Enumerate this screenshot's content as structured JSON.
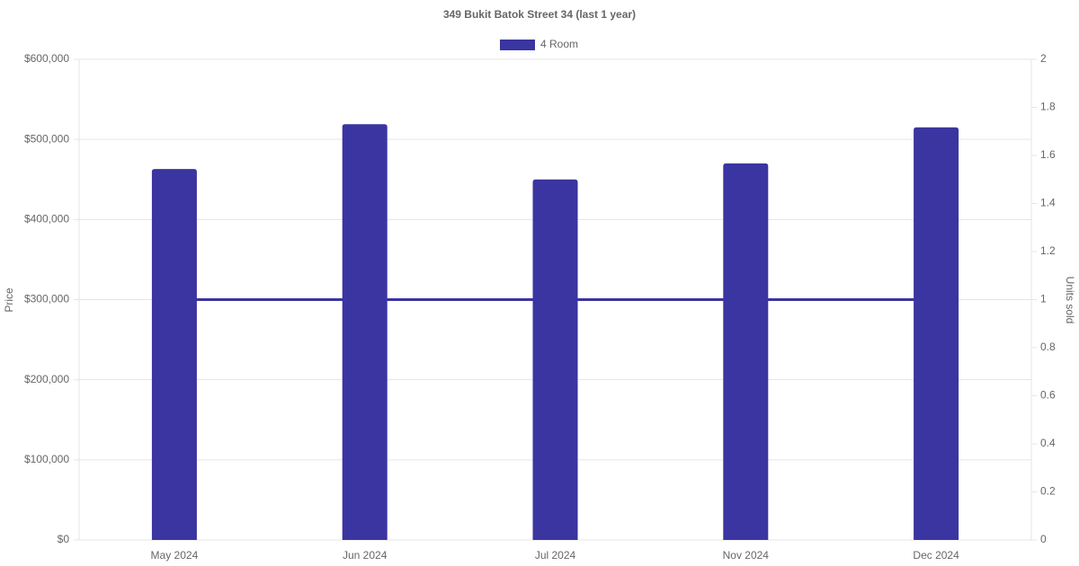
{
  "chart_data": {
    "type": "bar",
    "title": "349 Bukit Batok Street 34 (last 1 year)",
    "categories": [
      "May 2024",
      "Jun 2024",
      "Jul 2024",
      "Nov 2024",
      "Dec 2024"
    ],
    "series": [
      {
        "name": "4 Room",
        "color": "#3a35a0",
        "values": [
          463000,
          519000,
          450000,
          470000,
          515000
        ]
      },
      {
        "type": "line",
        "axis": "y2",
        "color": "#3a35a0",
        "values": [
          1,
          1,
          1,
          1,
          1
        ]
      }
    ],
    "ylabel": "Price",
    "y2label": "Units sold",
    "ylim": [
      0,
      600000
    ],
    "yticks": [
      {
        "value": 0,
        "label": "$0"
      },
      {
        "value": 100000,
        "label": "$100,000"
      },
      {
        "value": 200000,
        "label": "$200,000"
      },
      {
        "value": 300000,
        "label": "$300,000"
      },
      {
        "value": 400000,
        "label": "$400,000"
      },
      {
        "value": 500000,
        "label": "$500,000"
      },
      {
        "value": 600000,
        "label": "$600,000"
      }
    ],
    "y2lim": [
      0,
      2
    ],
    "y2ticks": [
      0,
      0.2,
      0.4,
      0.6,
      0.8,
      1,
      1.2,
      1.4,
      1.6,
      1.8,
      2
    ],
    "grid": true,
    "legend": "top"
  }
}
